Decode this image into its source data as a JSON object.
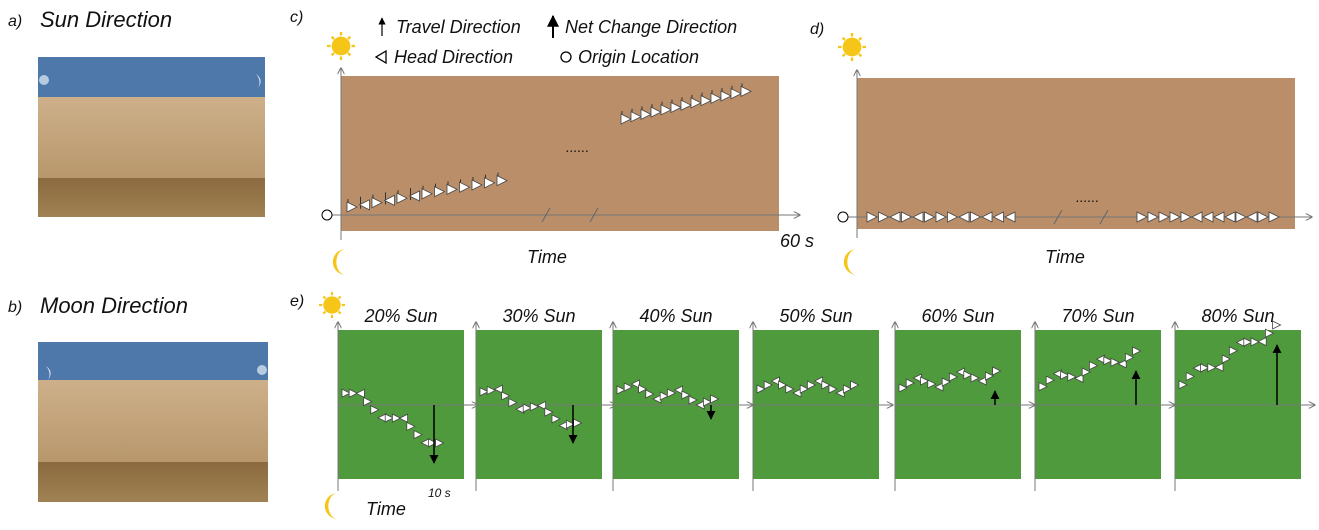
{
  "panel_a": {
    "label": "a)",
    "title": "Sun Direction"
  },
  "panel_b": {
    "label": "b)",
    "title": "Moon Direction"
  },
  "panel_c": {
    "label": "c)",
    "legend": [
      "Travel Direction",
      "Net Change Direction",
      "Head Direction",
      "Origin Location"
    ],
    "x_label": "Time",
    "end_label": "60 s"
  },
  "panel_d": {
    "label": "d)",
    "x_label": "Time"
  },
  "panel_e": {
    "label": "e)",
    "subpanels": [
      "20% Sun",
      "30% Sun",
      "40% Sun",
      "50% Sun",
      "60% Sun",
      "70% Sun",
      "80% Sun"
    ],
    "end_label": "10 s",
    "x_label": "Time"
  }
}
